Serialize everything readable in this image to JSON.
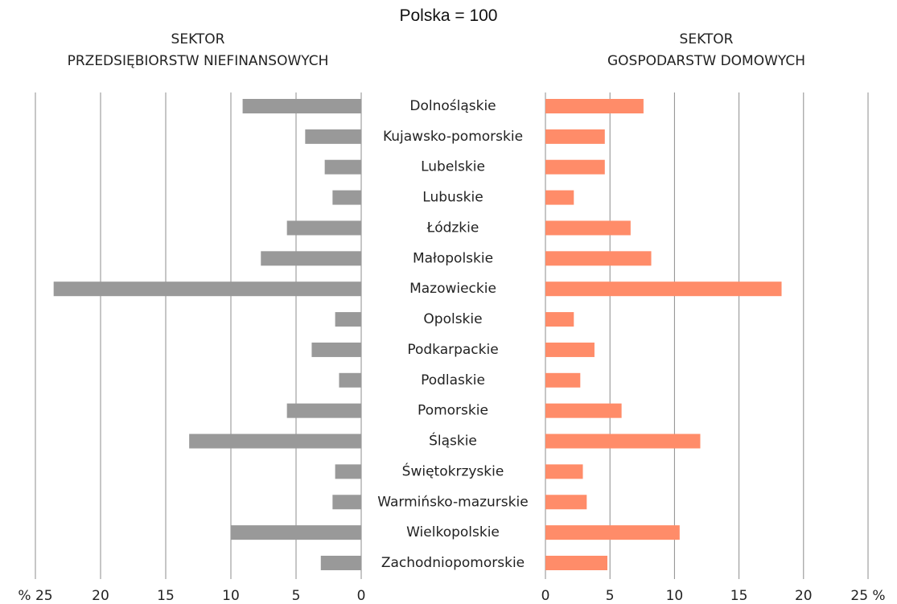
{
  "chart_data": {
    "type": "bar",
    "orientation": "horizontal",
    "title": "Polska = 100",
    "categories": [
      "Dolnośląskie",
      "Kujawsko-pomorskie",
      "Lubelskie",
      "Lubuskie",
      "Łódzkie",
      "Małopolskie",
      "Mazowieckie",
      "Opolskie",
      "Podkarpackie",
      "Podlaskie",
      "Pomorskie",
      "Śląskie",
      "Świętokrzyskie",
      "Warmińsko-mazurskie",
      "Wielkopolskie",
      "Zachodniopomorskie"
    ],
    "series": [
      {
        "name": "SEKTOR\nPRZEDSIĘBIORSTW NIEFINANSOWYCH",
        "color": "#999999",
        "values": [
          9.1,
          4.3,
          2.8,
          2.2,
          5.7,
          7.7,
          23.6,
          2.0,
          3.8,
          1.7,
          5.7,
          13.2,
          2.0,
          2.2,
          10.0,
          3.1
        ],
        "xlim": [
          25,
          0
        ],
        "xticks": [
          {
            "value": 25,
            "label": "% 25"
          },
          20,
          15,
          10,
          5,
          0
        ]
      },
      {
        "name": "SEKTOR\nGOSPODARSTW DOMOWYCH",
        "color": "#ff8c69",
        "values": [
          7.6,
          4.6,
          4.6,
          2.2,
          6.6,
          8.2,
          18.3,
          2.2,
          3.8,
          2.7,
          5.9,
          12.0,
          2.9,
          3.2,
          10.4,
          4.8
        ],
        "xlim": [
          0,
          25
        ],
        "xticks": [
          0,
          5,
          10,
          15,
          20,
          {
            "value": 25,
            "label": "25 %"
          }
        ]
      }
    ],
    "grid": true
  }
}
